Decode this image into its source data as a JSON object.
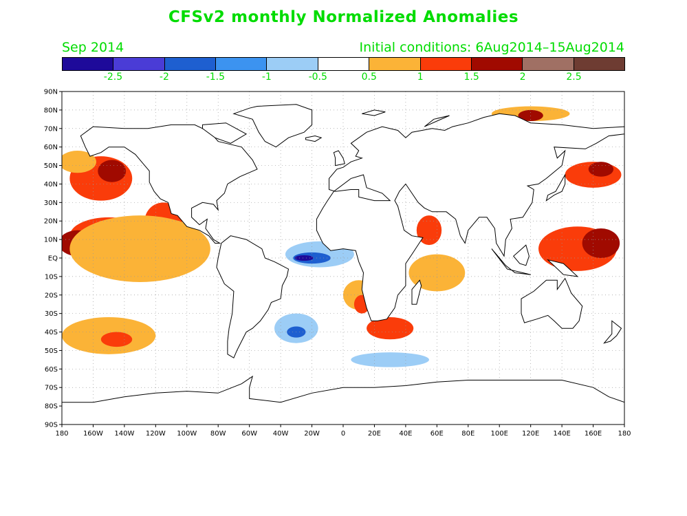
{
  "title": "CFSv2 monthly Normalized Anomalies",
  "period": "Sep 2014",
  "initial_conditions": "Initial conditions: 6Aug2014–15Aug2014",
  "colorbar": {
    "colors": [
      "#1e0a9a",
      "#4a3cd6",
      "#1e5fd0",
      "#3c93f0",
      "#9ccdf6",
      "#ffffff",
      "#fbb337",
      "#fa3c0a",
      "#a00a00",
      "#a07064",
      "#6e3c32"
    ],
    "labels": [
      "-2.5",
      "-2",
      "-1.5",
      "-1",
      "-0.5",
      "0.5",
      "1",
      "1.5",
      "2",
      "2.5"
    ]
  },
  "axes": {
    "lat_labels": [
      "90N",
      "80N",
      "70N",
      "60N",
      "50N",
      "40N",
      "30N",
      "20N",
      "10N",
      "EQ",
      "10S",
      "20S",
      "30S",
      "40S",
      "50S",
      "60S",
      "70S",
      "80S",
      "90S"
    ],
    "lon_labels": [
      "180",
      "160W",
      "140W",
      "120W",
      "100W",
      "80W",
      "60W",
      "40W",
      "20W",
      "0",
      "20E",
      "40E",
      "60E",
      "80E",
      "100E",
      "120E",
      "140E",
      "160E",
      "180"
    ]
  },
  "map_data": {
    "projection": "equirectangular",
    "lon_range": [
      -180,
      180
    ],
    "lat_range": [
      -90,
      90
    ],
    "grid": true,
    "anomaly_regions": [
      {
        "name": "NE Pacific warm",
        "lon": -155,
        "lat": 43,
        "rlon": 20,
        "rlat": 12,
        "level": "1"
      },
      {
        "name": "NE Pacific core",
        "lon": -148,
        "lat": 47,
        "rlon": 9,
        "rlat": 6,
        "level": "1.5"
      },
      {
        "name": "Gulf of Alaska",
        "lon": -170,
        "lat": 52,
        "rlon": 12,
        "rlat": 6,
        "level": "0.5"
      },
      {
        "name": "E Pacific tropical",
        "lon": -150,
        "lat": 12,
        "rlon": 25,
        "rlat": 10,
        "level": "1"
      },
      {
        "name": "E Pacific core",
        "lon": -170,
        "lat": 8,
        "rlon": 12,
        "rlat": 7,
        "level": "1.5"
      },
      {
        "name": "Mexico coast",
        "lon": -115,
        "lat": 20,
        "rlon": 12,
        "rlat": 10,
        "level": "1"
      },
      {
        "name": "Pacific equatorial band",
        "lon": -130,
        "lat": 5,
        "rlon": 45,
        "rlat": 18,
        "level": "0.5"
      },
      {
        "name": "W Pacific warm pool",
        "lon": 150,
        "lat": 5,
        "rlon": 25,
        "rlat": 12,
        "level": "1"
      },
      {
        "name": "W Pacific core",
        "lon": 165,
        "lat": 8,
        "rlon": 12,
        "rlat": 8,
        "level": "1.5"
      },
      {
        "name": "NW Pacific",
        "lon": 160,
        "lat": 45,
        "rlon": 18,
        "rlat": 7,
        "level": "1"
      },
      {
        "name": "Kuroshio",
        "lon": 165,
        "lat": 48,
        "rlon": 8,
        "rlat": 4,
        "level": "1.5"
      },
      {
        "name": "Indian Ocean warm",
        "lon": 60,
        "lat": -8,
        "rlon": 18,
        "rlat": 10,
        "level": "0.5"
      },
      {
        "name": "Arabian Sea",
        "lon": 55,
        "lat": 15,
        "rlon": 8,
        "rlat": 8,
        "level": "1"
      },
      {
        "name": "Agulhas",
        "lon": 30,
        "lat": -38,
        "rlon": 15,
        "rlat": 6,
        "level": "1"
      },
      {
        "name": "S Pacific warm",
        "lon": -150,
        "lat": -42,
        "rlon": 30,
        "rlat": 10,
        "level": "0.5"
      },
      {
        "name": "S Pacific core",
        "lon": -145,
        "lat": -44,
        "rlon": 10,
        "rlat": 4,
        "level": "1"
      },
      {
        "name": "Bering Strait warm",
        "lon": 120,
        "lat": 78,
        "rlon": 25,
        "rlat": 4,
        "level": "0.5"
      },
      {
        "name": "Laptev core",
        "lon": 120,
        "lat": 77,
        "rlon": 8,
        "rlat": 3,
        "level": "1.5"
      },
      {
        "name": "Atlantic equatorial cold",
        "lon": -15,
        "lat": 2,
        "rlon": 22,
        "rlat": 7,
        "level": "-0.5"
      },
      {
        "name": "Atlantic equatorial core",
        "lon": -20,
        "lat": 0,
        "rlon": 12,
        "rlat": 3,
        "level": "-1.5"
      },
      {
        "name": "Atlantic cold center",
        "lon": -25,
        "lat": 0,
        "rlon": 6,
        "rlat": 1.5,
        "level": "-2.5"
      },
      {
        "name": "South Atlantic cold",
        "lon": -30,
        "lat": -38,
        "rlon": 14,
        "rlat": 8,
        "level": "-0.5"
      },
      {
        "name": "South Atlantic core",
        "lon": -30,
        "lat": -40,
        "rlon": 6,
        "rlat": 3,
        "level": "-1.5"
      },
      {
        "name": "Southern Ocean cold",
        "lon": 30,
        "lat": -55,
        "rlon": 25,
        "rlat": 4,
        "level": "-0.5"
      },
      {
        "name": "SE Atlantic warm",
        "lon": 10,
        "lat": -20,
        "rlon": 10,
        "rlat": 8,
        "level": "0.5"
      },
      {
        "name": "Benguela",
        "lon": 12,
        "lat": -25,
        "rlon": 5,
        "rlat": 5,
        "level": "1"
      }
    ]
  }
}
